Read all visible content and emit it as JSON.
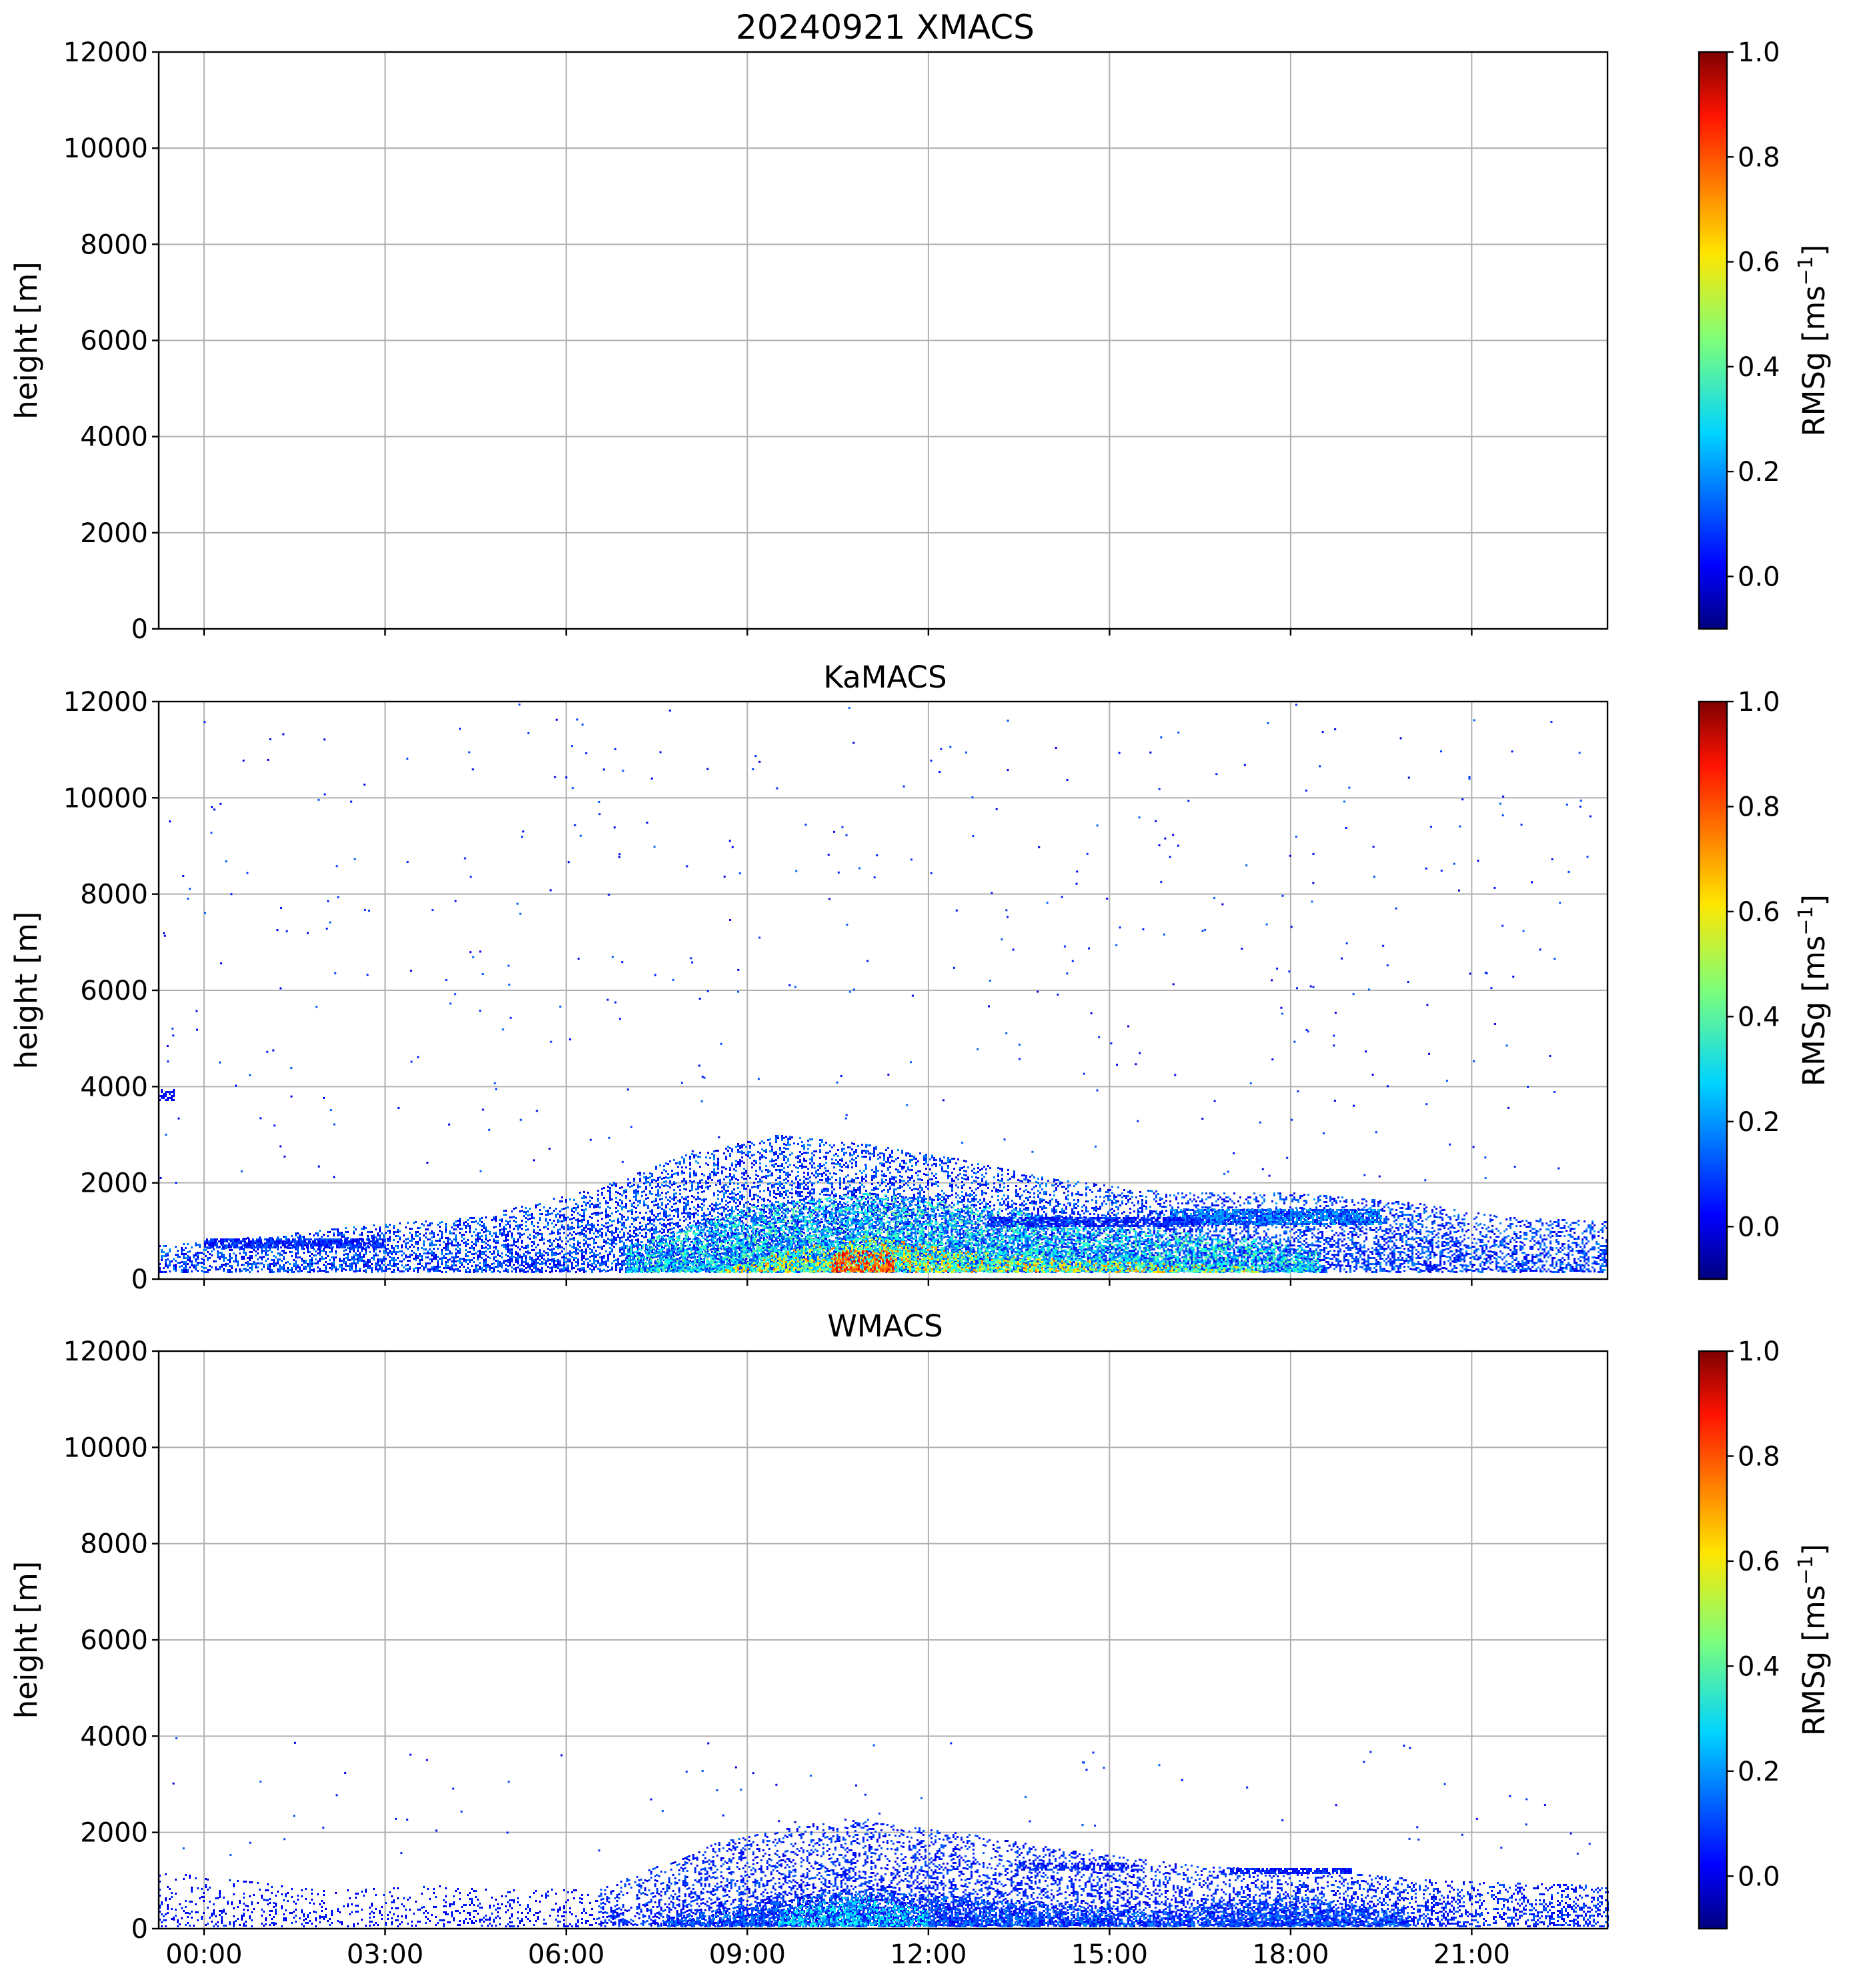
{
  "chart_data": [
    {
      "type": "heatmap",
      "title": "20240921 XMACS",
      "xlabel": "",
      "ylabel": "height [m]",
      "xlim": [
        "2024-09-21 -00:45",
        "2024-09-21 23:15"
      ],
      "ylim": [
        0,
        12000
      ],
      "grid": true,
      "x_ticks": [
        "00:00",
        "03:00",
        "06:00",
        "09:00",
        "12:00",
        "15:00",
        "18:00",
        "21:00"
      ],
      "x_tick_hours": [
        0,
        3,
        6,
        9,
        12,
        15,
        18,
        21
      ],
      "show_x_tick_labels": false,
      "y_ticks": [
        0,
        2000,
        4000,
        6000,
        8000,
        10000,
        12000
      ],
      "colorbar": {
        "label": "RMSg [ms⁻¹]",
        "label_base": "RMSg [ms",
        "label_exp": "−1",
        "label_end": "]",
        "range": [
          -0.1,
          1.0
        ],
        "ticks": [
          0.0,
          0.2,
          0.4,
          0.6,
          0.8,
          1.0
        ],
        "tick_labels": [
          "0.0",
          "0.2",
          "0.4",
          "0.6",
          "0.8",
          "1.0"
        ],
        "colormap": "jet"
      },
      "data_present": false,
      "features": []
    },
    {
      "type": "heatmap",
      "title": "KaMACS",
      "xlabel": "",
      "ylabel": "height [m]",
      "xlim": [
        "2024-09-21 -00:45",
        "2024-09-21 23:15"
      ],
      "ylim": [
        0,
        12000
      ],
      "grid": true,
      "x_ticks": [
        "00:00",
        "03:00",
        "06:00",
        "09:00",
        "12:00",
        "15:00",
        "18:00",
        "21:00"
      ],
      "x_tick_hours": [
        0,
        3,
        6,
        9,
        12,
        15,
        18,
        21
      ],
      "show_x_tick_labels": false,
      "y_ticks": [
        0,
        2000,
        4000,
        6000,
        8000,
        10000,
        12000
      ],
      "colorbar": {
        "label": "RMSg [ms⁻¹]",
        "label_base": "RMSg [ms",
        "label_exp": "−1",
        "label_end": "]",
        "range": [
          -0.1,
          1.0
        ],
        "ticks": [
          0.0,
          0.2,
          0.4,
          0.6,
          0.8,
          1.0
        ],
        "tick_labels": [
          "0.0",
          "0.2",
          "0.4",
          "0.6",
          "0.8",
          "1.0"
        ],
        "colormap": "jet"
      },
      "data_present": true,
      "features": [
        {
          "kind": "noise",
          "t_start": -0.75,
          "t_end": 23.0,
          "h_start": 2000,
          "h_end": 12000,
          "count": 420,
          "v_min": 0.0,
          "v_max": 0.15
        },
        {
          "kind": "fill",
          "t_start": -0.75,
          "t_end": 23.25,
          "h_top": [
            [
              -0.75,
              700
            ],
            [
              1.0,
              900
            ],
            [
              2.5,
              1100
            ],
            [
              4.5,
              1300
            ],
            [
              6.5,
              1900
            ],
            [
              8.0,
              2600
            ],
            [
              9.5,
              3000
            ],
            [
              11.0,
              2800
            ],
            [
              12.5,
              2500
            ],
            [
              14.0,
              2100
            ],
            [
              16.0,
              1800
            ],
            [
              18.0,
              1800
            ],
            [
              20.0,
              1600
            ],
            [
              21.5,
              1300
            ],
            [
              23.25,
              1200
            ]
          ],
          "h_bottom": 150,
          "density": 0.55,
          "v_min": 0.0,
          "v_max": 0.2
        },
        {
          "kind": "fill",
          "t_start": 7.0,
          "t_end": 18.5,
          "h_top": [
            [
              7.0,
              700
            ],
            [
              9.0,
              1500
            ],
            [
              11.0,
              1800
            ],
            [
              13.0,
              1500
            ],
            [
              15.0,
              1100
            ],
            [
              17.0,
              900
            ],
            [
              18.5,
              600
            ]
          ],
          "h_bottom": 150,
          "density": 0.9,
          "v_min": 0.05,
          "v_max": 0.45
        },
        {
          "kind": "fill",
          "t_start": 8.5,
          "t_end": 17.5,
          "h_top": [
            [
              8.5,
              200
            ],
            [
              10.0,
              700
            ],
            [
              11.0,
              900
            ],
            [
              12.5,
              600
            ],
            [
              14.5,
              400
            ],
            [
              17.5,
              250
            ]
          ],
          "h_bottom": 150,
          "density": 0.7,
          "v_min": 0.3,
          "v_max": 0.75
        },
        {
          "kind": "fill",
          "t_start": 10.4,
          "t_end": 11.4,
          "h_top": [
            [
              10.4,
              600
            ],
            [
              11.4,
              600
            ]
          ],
          "h_bottom": 150,
          "density": 0.8,
          "v_min": 0.65,
          "v_max": 0.9
        },
        {
          "kind": "band",
          "t_start": 0.0,
          "t_end": 3.0,
          "h_center": 750,
          "h_width": 200,
          "density": 0.8,
          "v_min": 0.0,
          "v_max": 0.15
        },
        {
          "kind": "band",
          "t_start": 16.0,
          "t_end": 19.5,
          "h_center": 1300,
          "h_width": 300,
          "density": 0.85,
          "v_min": 0.05,
          "v_max": 0.25
        },
        {
          "kind": "band",
          "t_start": 13.0,
          "t_end": 16.5,
          "h_center": 1200,
          "h_width": 180,
          "density": 0.75,
          "v_min": 0.0,
          "v_max": 0.15
        },
        {
          "kind": "fill",
          "t_start": -0.75,
          "t_end": -0.5,
          "h_top": [
            [
              -0.75,
              3950
            ],
            [
              -0.5,
              3950
            ]
          ],
          "h_bottom": 3700,
          "density": 0.8,
          "v_min": 0.0,
          "v_max": 0.1
        }
      ]
    },
    {
      "type": "heatmap",
      "title": "WMACS",
      "xlabel": "",
      "ylabel": "height [m]",
      "xlim": [
        "2024-09-21 -00:45",
        "2024-09-21 23:15"
      ],
      "ylim": [
        0,
        12000
      ],
      "grid": true,
      "x_ticks": [
        "00:00",
        "03:00",
        "06:00",
        "09:00",
        "12:00",
        "15:00",
        "18:00",
        "21:00"
      ],
      "x_tick_hours": [
        0,
        3,
        6,
        9,
        12,
        15,
        18,
        21
      ],
      "show_x_tick_labels": true,
      "y_ticks": [
        0,
        2000,
        4000,
        6000,
        8000,
        10000,
        12000
      ],
      "colorbar": {
        "label": "RMSg [ms⁻¹]",
        "label_base": "RMSg [ms",
        "label_exp": "−1",
        "label_end": "]",
        "range": [
          -0.1,
          1.0
        ],
        "ticks": [
          0.0,
          0.2,
          0.4,
          0.6,
          0.8,
          1.0
        ],
        "tick_labels": [
          "0.0",
          "0.2",
          "0.4",
          "0.6",
          "0.8",
          "1.0"
        ],
        "colormap": "jet"
      },
      "data_present": true,
      "features": [
        {
          "kind": "noise",
          "t_start": -0.75,
          "t_end": 23.0,
          "h_start": 1500,
          "h_end": 4000,
          "count": 80,
          "v_min": 0.0,
          "v_max": 0.15
        },
        {
          "kind": "fill",
          "t_start": -0.75,
          "t_end": 6.5,
          "h_top": [
            [
              -0.75,
              1200
            ],
            [
              2.0,
              800
            ],
            [
              4.0,
              900
            ],
            [
              6.5,
              800
            ]
          ],
          "h_bottom": 50,
          "density": 0.2,
          "v_min": 0.0,
          "v_max": 0.1
        },
        {
          "kind": "fill",
          "t_start": 6.5,
          "t_end": 23.25,
          "h_top": [
            [
              6.5,
              800
            ],
            [
              8.5,
              1800
            ],
            [
              10.5,
              2300
            ],
            [
              12.5,
              2000
            ],
            [
              14.5,
              1600
            ],
            [
              16.5,
              1300
            ],
            [
              18.5,
              1200
            ],
            [
              20.5,
              1000
            ],
            [
              23.25,
              900
            ]
          ],
          "h_bottom": 50,
          "density": 0.45,
          "v_min": 0.0,
          "v_max": 0.15
        },
        {
          "kind": "fill",
          "t_start": 7.5,
          "t_end": 20.0,
          "h_top": [
            [
              7.5,
              200
            ],
            [
              9.0,
              500
            ],
            [
              10.5,
              800
            ],
            [
              12.0,
              700
            ],
            [
              14.0,
              500
            ],
            [
              16.0,
              350
            ],
            [
              18.0,
              700
            ],
            [
              20.0,
              300
            ]
          ],
          "h_bottom": 50,
          "density": 0.9,
          "v_min": 0.02,
          "v_max": 0.2
        },
        {
          "kind": "fill",
          "t_start": 9.5,
          "t_end": 12.0,
          "h_top": [
            [
              9.5,
              400
            ],
            [
              10.8,
              700
            ],
            [
              12.0,
              400
            ]
          ],
          "h_bottom": 50,
          "density": 0.5,
          "v_min": 0.2,
          "v_max": 0.35
        },
        {
          "kind": "band",
          "t_start": 17.0,
          "t_end": 19.0,
          "h_center": 1200,
          "h_width": 120,
          "density": 0.8,
          "v_min": 0.0,
          "v_max": 0.12
        },
        {
          "kind": "band",
          "t_start": 13.5,
          "t_end": 15.5,
          "h_center": 1300,
          "h_width": 150,
          "density": 0.6,
          "v_min": 0.0,
          "v_max": 0.12
        }
      ]
    }
  ]
}
